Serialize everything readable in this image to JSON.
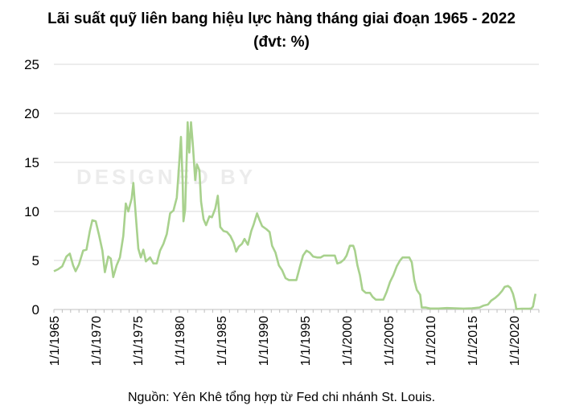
{
  "title_line1": "Lãi suất quỹ liên bang hiệu lực hàng tháng giai đoạn 1965 - 2022",
  "title_line2": "(đvt: %)",
  "source": "Nguồn: Yên Khê tổng hợp từ Fed chi nhánh St. Louis.",
  "watermark_text": "DESIGNED BY",
  "chart_data": {
    "type": "line",
    "title": "Lãi suất quỹ liên bang hiệu lực hàng tháng giai đoạn 1965 - 2022",
    "subtitle": "(đvt: %)",
    "xlabel": "",
    "ylabel": "",
    "xlim": [
      1965,
      2023
    ],
    "ylim": [
      0,
      25
    ],
    "yticks": [
      0,
      5,
      10,
      15,
      20,
      25
    ],
    "xticks": [
      {
        "year": 1965,
        "label": "1/1/1965"
      },
      {
        "year": 1970,
        "label": "1/1/1970"
      },
      {
        "year": 1975,
        "label": "1/1/1975"
      },
      {
        "year": 1980,
        "label": "1/1/1980"
      },
      {
        "year": 1985,
        "label": "1/1/1985"
      },
      {
        "year": 1990,
        "label": "1/1/1990"
      },
      {
        "year": 1995,
        "label": "1/1/1995"
      },
      {
        "year": 2000,
        "label": "1/1/2000"
      },
      {
        "year": 2005,
        "label": "1/1/2005"
      },
      {
        "year": 2010,
        "label": "1/1/2010"
      },
      {
        "year": 2015,
        "label": "1/1/2015"
      },
      {
        "year": 2020,
        "label": "1/1/2020"
      }
    ],
    "grid": true,
    "line_color": "#a8d18d",
    "grid_color": "#d9d9d9",
    "series": [
      {
        "values": [
          [
            1965.0,
            3.9
          ],
          [
            1965.5,
            4.1
          ],
          [
            1966.0,
            4.4
          ],
          [
            1966.5,
            5.4
          ],
          [
            1966.9,
            5.7
          ],
          [
            1967.3,
            4.5
          ],
          [
            1967.6,
            3.9
          ],
          [
            1968.0,
            4.6
          ],
          [
            1968.5,
            6.0
          ],
          [
            1968.9,
            6.1
          ],
          [
            1969.3,
            8.0
          ],
          [
            1969.6,
            9.1
          ],
          [
            1970.0,
            9.0
          ],
          [
            1970.4,
            7.6
          ],
          [
            1970.8,
            6.0
          ],
          [
            1971.1,
            3.8
          ],
          [
            1971.5,
            5.4
          ],
          [
            1971.8,
            5.2
          ],
          [
            1972.1,
            3.3
          ],
          [
            1972.5,
            4.5
          ],
          [
            1972.9,
            5.3
          ],
          [
            1973.3,
            7.5
          ],
          [
            1973.6,
            10.8
          ],
          [
            1973.9,
            10.0
          ],
          [
            1974.3,
            11.3
          ],
          [
            1974.5,
            12.9
          ],
          [
            1974.8,
            9.5
          ],
          [
            1975.1,
            6.2
          ],
          [
            1975.4,
            5.3
          ],
          [
            1975.7,
            6.1
          ],
          [
            1976.0,
            4.9
          ],
          [
            1976.5,
            5.3
          ],
          [
            1976.9,
            4.7
          ],
          [
            1977.3,
            4.7
          ],
          [
            1977.7,
            6.0
          ],
          [
            1978.1,
            6.7
          ],
          [
            1978.5,
            7.7
          ],
          [
            1978.9,
            9.8
          ],
          [
            1979.3,
            10.1
          ],
          [
            1979.7,
            11.4
          ],
          [
            1979.9,
            13.8
          ],
          [
            1980.2,
            17.6
          ],
          [
            1980.4,
            13.0
          ],
          [
            1980.5,
            9.0
          ],
          [
            1980.7,
            10.2
          ],
          [
            1980.9,
            15.9
          ],
          [
            1981.0,
            19.1
          ],
          [
            1981.2,
            16.0
          ],
          [
            1981.4,
            19.1
          ],
          [
            1981.6,
            17.0
          ],
          [
            1981.9,
            13.2
          ],
          [
            1982.1,
            14.8
          ],
          [
            1982.4,
            14.2
          ],
          [
            1982.6,
            11.0
          ],
          [
            1982.9,
            9.2
          ],
          [
            1983.2,
            8.6
          ],
          [
            1983.6,
            9.5
          ],
          [
            1983.9,
            9.4
          ],
          [
            1984.3,
            10.3
          ],
          [
            1984.6,
            11.6
          ],
          [
            1984.9,
            8.4
          ],
          [
            1985.3,
            8.0
          ],
          [
            1985.7,
            7.9
          ],
          [
            1986.1,
            7.5
          ],
          [
            1986.5,
            6.8
          ],
          [
            1986.8,
            5.9
          ],
          [
            1987.1,
            6.4
          ],
          [
            1987.5,
            6.7
          ],
          [
            1987.8,
            7.2
          ],
          [
            1988.2,
            6.6
          ],
          [
            1988.6,
            8.0
          ],
          [
            1988.9,
            8.7
          ],
          [
            1989.3,
            9.8
          ],
          [
            1989.6,
            9.1
          ],
          [
            1989.9,
            8.5
          ],
          [
            1990.4,
            8.2
          ],
          [
            1990.8,
            7.9
          ],
          [
            1991.1,
            6.5
          ],
          [
            1991.5,
            5.8
          ],
          [
            1991.9,
            4.5
          ],
          [
            1992.3,
            4.0
          ],
          [
            1992.7,
            3.2
          ],
          [
            1993.1,
            3.0
          ],
          [
            1993.6,
            3.0
          ],
          [
            1994.0,
            3.0
          ],
          [
            1994.4,
            4.3
          ],
          [
            1994.8,
            5.5
          ],
          [
            1995.2,
            6.0
          ],
          [
            1995.6,
            5.8
          ],
          [
            1996.0,
            5.4
          ],
          [
            1996.5,
            5.3
          ],
          [
            1996.9,
            5.3
          ],
          [
            1997.3,
            5.5
          ],
          [
            1997.8,
            5.5
          ],
          [
            1998.2,
            5.5
          ],
          [
            1998.6,
            5.5
          ],
          [
            1998.9,
            4.7
          ],
          [
            1999.3,
            4.8
          ],
          [
            1999.7,
            5.1
          ],
          [
            2000.0,
            5.5
          ],
          [
            2000.4,
            6.5
          ],
          [
            2000.8,
            6.5
          ],
          [
            2001.0,
            6.0
          ],
          [
            2001.3,
            4.5
          ],
          [
            2001.6,
            3.5
          ],
          [
            2001.9,
            2.0
          ],
          [
            2002.3,
            1.7
          ],
          [
            2002.8,
            1.7
          ],
          [
            2003.1,
            1.3
          ],
          [
            2003.5,
            1.0
          ],
          [
            2004.0,
            1.0
          ],
          [
            2004.4,
            1.0
          ],
          [
            2004.8,
            1.8
          ],
          [
            2005.2,
            2.8
          ],
          [
            2005.6,
            3.5
          ],
          [
            2006.0,
            4.4
          ],
          [
            2006.4,
            5.0
          ],
          [
            2006.7,
            5.3
          ],
          [
            2007.1,
            5.3
          ],
          [
            2007.5,
            5.3
          ],
          [
            2007.8,
            4.8
          ],
          [
            2008.1,
            3.0
          ],
          [
            2008.4,
            2.0
          ],
          [
            2008.8,
            1.5
          ],
          [
            2009.0,
            0.2
          ],
          [
            2009.5,
            0.2
          ],
          [
            2010.0,
            0.1
          ],
          [
            2011.0,
            0.1
          ],
          [
            2012.0,
            0.15
          ],
          [
            2013.0,
            0.12
          ],
          [
            2014.0,
            0.09
          ],
          [
            2015.0,
            0.12
          ],
          [
            2015.9,
            0.2
          ],
          [
            2016.4,
            0.4
          ],
          [
            2016.9,
            0.5
          ],
          [
            2017.3,
            0.9
          ],
          [
            2017.8,
            1.2
          ],
          [
            2018.2,
            1.5
          ],
          [
            2018.6,
            1.9
          ],
          [
            2018.9,
            2.3
          ],
          [
            2019.3,
            2.4
          ],
          [
            2019.6,
            2.2
          ],
          [
            2019.9,
            1.6
          ],
          [
            2020.2,
            0.6
          ],
          [
            2020.3,
            0.05
          ],
          [
            2021.0,
            0.08
          ],
          [
            2021.8,
            0.08
          ],
          [
            2022.1,
            0.1
          ],
          [
            2022.3,
            0.3
          ],
          [
            2022.5,
            1.2
          ],
          [
            2022.6,
            1.6
          ]
        ]
      }
    ]
  }
}
